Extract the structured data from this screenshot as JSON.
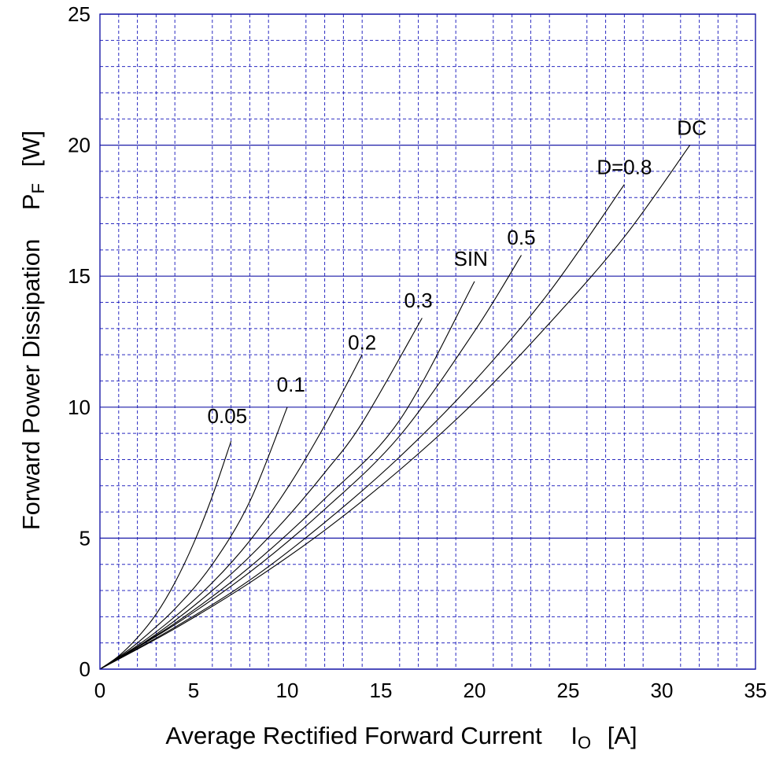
{
  "chart_data": {
    "type": "line",
    "xlabel": "Average Rectified Forward Current",
    "xsymbol": "I",
    "xsymbol_sub": "O",
    "xunit": "[A]",
    "ylabel": "Forward Power Dissipation",
    "ysymbol": "P",
    "ysymbol_sub": "F",
    "yunit": "[W]",
    "xlim": [
      0,
      35
    ],
    "ylim": [
      0,
      25
    ],
    "x_major_ticks": [
      0,
      5,
      10,
      15,
      20,
      25,
      30,
      35
    ],
    "y_major_ticks": [
      0,
      5,
      10,
      15,
      20,
      25
    ],
    "x_tick_labels": [
      "0",
      "5",
      "10",
      "15",
      "20",
      "25",
      "30",
      "35"
    ],
    "y_tick_labels": [
      "0",
      "5",
      "10",
      "15",
      "20",
      "25"
    ],
    "grid": true,
    "series": [
      {
        "name": "0.05",
        "x": [
          0,
          1,
          2,
          3,
          4,
          5,
          6,
          7
        ],
        "y": [
          0,
          0.5,
          1.2,
          2.1,
          3.3,
          4.8,
          6.6,
          8.7
        ]
      },
      {
        "name": "0.1",
        "x": [
          0,
          1,
          2,
          4,
          6,
          8,
          10
        ],
        "y": [
          0,
          0.47,
          1.0,
          2.3,
          4.0,
          6.4,
          10.0
        ]
      },
      {
        "name": "0.2",
        "x": [
          0,
          2,
          4,
          6,
          8,
          10,
          12,
          14
        ],
        "y": [
          0,
          0.9,
          2.0,
          3.3,
          4.9,
          6.9,
          9.3,
          12.0
        ]
      },
      {
        "name": "0.3",
        "x": [
          0,
          2,
          4,
          6,
          8,
          10,
          12,
          14,
          17.2
        ],
        "y": [
          0,
          0.85,
          1.85,
          3.0,
          4.3,
          5.8,
          7.5,
          9.4,
          13.4
        ]
      },
      {
        "name": "SIN",
        "x": [
          0,
          4,
          8,
          12,
          16,
          20
        ],
        "y": [
          0,
          1.75,
          3.9,
          6.5,
          9.5,
          14.8
        ]
      },
      {
        "name": "0.5",
        "x": [
          0,
          4,
          8,
          12,
          16,
          20,
          22.5
        ],
        "y": [
          0,
          1.7,
          3.7,
          6.1,
          8.9,
          12.9,
          15.8
        ]
      },
      {
        "name": "D=0.8",
        "x": [
          0,
          4,
          8,
          12,
          16,
          20,
          24,
          28
        ],
        "y": [
          0,
          1.6,
          3.4,
          5.6,
          8.1,
          11.0,
          14.4,
          18.5
        ]
      },
      {
        "name": "DC",
        "x": [
          0,
          4,
          8,
          12,
          16,
          20,
          24,
          28,
          31.5
        ],
        "y": [
          0,
          1.55,
          3.3,
          5.3,
          7.6,
          10.2,
          13.2,
          16.5,
          20.0
        ]
      }
    ],
    "curve_labels": [
      {
        "text": "0.05",
        "x": 6.8,
        "y": 9.4
      },
      {
        "text": "0.1",
        "x": 10.2,
        "y": 10.6
      },
      {
        "text": "0.2",
        "x": 14.0,
        "y": 12.2
      },
      {
        "text": "0.3",
        "x": 17.0,
        "y": 13.8
      },
      {
        "text": "SIN",
        "x": 19.8,
        "y": 15.4
      },
      {
        "text": "0.5",
        "x": 22.5,
        "y": 16.2
      },
      {
        "text": "D=0.8",
        "x": 28.0,
        "y": 18.9
      },
      {
        "text": "DC",
        "x": 31.6,
        "y": 20.4
      }
    ]
  }
}
